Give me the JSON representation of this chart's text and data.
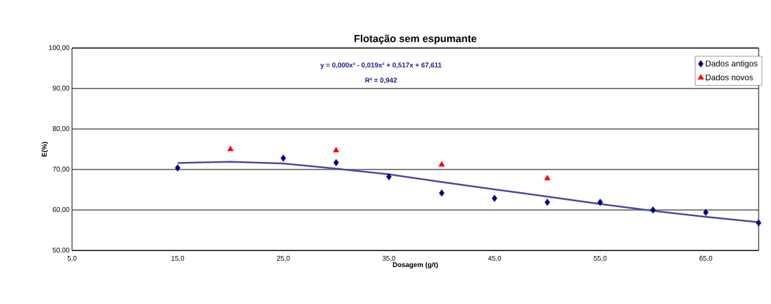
{
  "chart_data": {
    "type": "scatter",
    "title": "Flotação sem espumante",
    "xlabel": "Dosagem (g/t)",
    "ylabel": "E(%)",
    "xlim": [
      5,
      70
    ],
    "ylim": [
      50,
      100
    ],
    "xticks": [
      {
        "value": 5,
        "label": "5,0"
      },
      {
        "value": 15,
        "label": "15,0"
      },
      {
        "value": 25,
        "label": "25,0"
      },
      {
        "value": 35,
        "label": "35,0"
      },
      {
        "value": 45,
        "label": "45,0"
      },
      {
        "value": 55,
        "label": "55,0"
      },
      {
        "value": 65,
        "label": "65,0"
      }
    ],
    "yticks": [
      {
        "value": 50,
        "label": "50,00"
      },
      {
        "value": 60,
        "label": "60,00"
      },
      {
        "value": 70,
        "label": "70,00"
      },
      {
        "value": 80,
        "label": "80,00"
      },
      {
        "value": 90,
        "label": "90,00"
      },
      {
        "value": 100,
        "label": "100,00"
      }
    ],
    "grid": "y",
    "legend": "top right",
    "series": [
      {
        "name": "Dados antigos",
        "color": "#000080",
        "marker": "diamond",
        "x": [
          15,
          25,
          30,
          35,
          40,
          45,
          50,
          55,
          60,
          65,
          70
        ],
        "values": [
          70.4,
          72.8,
          71.7,
          68.2,
          64.2,
          62.9,
          61.9,
          61.9,
          60.0,
          59.4,
          56.8
        ]
      },
      {
        "name": "Dados novos",
        "color": "#ff0000",
        "marker": "triangle",
        "x": [
          20,
          30,
          40,
          50
        ],
        "values": [
          75.0,
          74.7,
          71.2,
          67.8
        ]
      },
      {
        "type": "line",
        "color": "#4848a8",
        "marker": "none",
        "x": [
          15,
          20,
          25,
          30,
          35,
          40,
          45,
          50,
          55,
          60,
          65,
          70
        ],
        "values": [
          71.6,
          71.9,
          71.5,
          70.2,
          68.8,
          66.9,
          65.1,
          63.3,
          61.5,
          59.8,
          58.3,
          57.0
        ]
      }
    ],
    "annotations": [
      "y = 0,000x³ - 0,019x² + 0,517x + 67,611",
      "R² = 0,942"
    ]
  }
}
